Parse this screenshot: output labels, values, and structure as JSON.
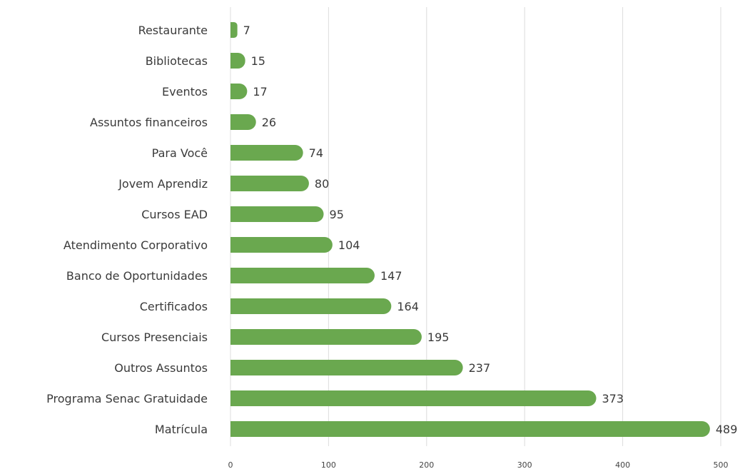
{
  "chart_data": {
    "type": "bar",
    "orientation": "horizontal",
    "categories": [
      "Restaurante",
      "Bibliotecas",
      "Eventos",
      "Assuntos financeiros",
      "Para Você",
      "Jovem Aprendiz",
      "Cursos EAD",
      "Atendimento Corporativo",
      "Banco de Oportunidades",
      "Certificados",
      "Cursos Presenciais",
      "Outros Assuntos",
      "Programa Senac Gratuidade",
      "Matrícula"
    ],
    "values": [
      7,
      15,
      17,
      26,
      74,
      80,
      95,
      104,
      147,
      164,
      195,
      237,
      373,
      489
    ],
    "data_labels": [
      "7",
      "15",
      "17",
      "26",
      "74",
      "80",
      "95",
      "104",
      "147",
      "164",
      "195",
      "237",
      "373",
      "489"
    ],
    "x_ticks": [
      "0",
      "100",
      "200",
      "300",
      "400",
      "500"
    ],
    "x_tick_values": [
      0,
      100,
      200,
      300,
      400,
      500
    ],
    "xlim": [
      0,
      500
    ],
    "grid": "vertical",
    "legend": "none",
    "colors": {
      "bar": "#6aa84f",
      "text": "#3a3a3a",
      "grid": "#dcdcdc"
    }
  }
}
